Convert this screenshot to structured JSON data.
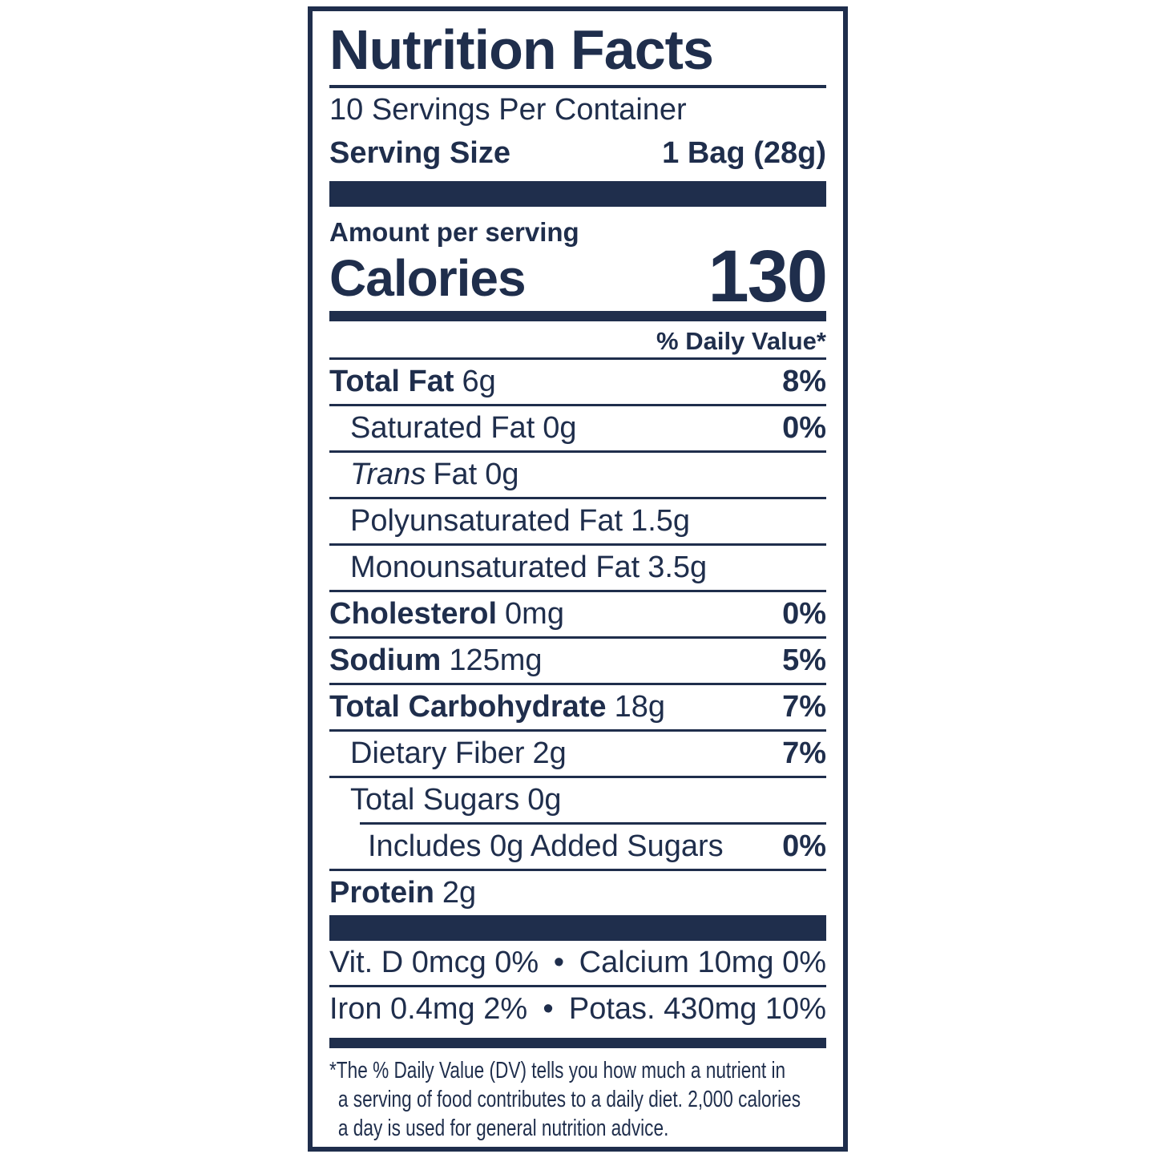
{
  "colors": {
    "navy": "#1f2e4c",
    "background": "#ffffff"
  },
  "label": {
    "title": "Nutrition Facts",
    "servings_per_container": "10 Servings Per Container",
    "serving_size": {
      "label": "Serving Size",
      "value": "1 Bag (28g)"
    },
    "amount_per_serving": "Amount per serving",
    "calories": {
      "label": "Calories",
      "value": "130"
    },
    "daily_value_header": "% Daily Value*",
    "nutrients": [
      {
        "name": "Total Fat",
        "amount": "6g",
        "daily_value": "8%"
      },
      {
        "name": "Saturated Fat",
        "amount": "0g",
        "daily_value": "0%"
      },
      {
        "name_italic": "Trans",
        "name": "Fat",
        "amount": "0g",
        "daily_value": ""
      },
      {
        "name": "Polyunsaturated Fat",
        "amount": "1.5g",
        "daily_value": ""
      },
      {
        "name": "Monounsaturated Fat",
        "amount": "3.5g",
        "daily_value": ""
      },
      {
        "name": "Cholesterol",
        "amount": "0mg",
        "daily_value": "0%"
      },
      {
        "name": "Sodium",
        "amount": "125mg",
        "daily_value": "5%"
      },
      {
        "name": "Total Carbohydrate",
        "amount": "18g",
        "daily_value": "7%"
      },
      {
        "name": "Dietary Fiber",
        "amount": "2g",
        "daily_value": "7%"
      },
      {
        "name": "Total Sugars",
        "amount": "0g",
        "daily_value": ""
      },
      {
        "name": "Includes 0g Added Sugars",
        "amount": "",
        "daily_value": "0%"
      },
      {
        "name": "Protein",
        "amount": "2g",
        "daily_value": ""
      }
    ],
    "micronutrients": [
      {
        "left": "Vit. D 0mcg 0%",
        "separator": "•",
        "right": "Calcium 10mg 0%"
      },
      {
        "left": "Iron 0.4mg 2%",
        "separator": "•",
        "right": "Potas. 430mg 10%"
      }
    ],
    "footnote_lines": [
      "*The % Daily Value (DV) tells you how much a nutrient in",
      "a serving of food contributes to a daily diet. 2,000 calories",
      "a day is used for general nutrition advice."
    ]
  }
}
